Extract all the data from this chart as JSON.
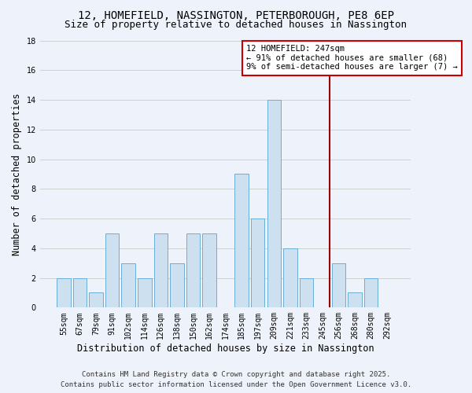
{
  "title": "12, HOMEFIELD, NASSINGTON, PETERBOROUGH, PE8 6EP",
  "subtitle": "Size of property relative to detached houses in Nassington",
  "xlabel": "Distribution of detached houses by size in Nassington",
  "ylabel": "Number of detached properties",
  "bar_labels": [
    "55sqm",
    "67sqm",
    "79sqm",
    "91sqm",
    "102sqm",
    "114sqm",
    "126sqm",
    "138sqm",
    "150sqm",
    "162sqm",
    "174sqm",
    "185sqm",
    "197sqm",
    "209sqm",
    "221sqm",
    "233sqm",
    "245sqm",
    "256sqm",
    "268sqm",
    "280sqm",
    "292sqm"
  ],
  "bar_heights": [
    2,
    2,
    1,
    5,
    3,
    2,
    5,
    3,
    5,
    5,
    0,
    9,
    6,
    14,
    4,
    2,
    0,
    3,
    1,
    2,
    0
  ],
  "bar_color": "#cce0f0",
  "bar_edge_color": "#6baed6",
  "grid_color": "#d0d0d0",
  "background_color": "#eef2fa",
  "vline_x_idx": 16.45,
  "vline_color": "#990000",
  "annotation_title": "12 HOMEFIELD: 247sqm",
  "annotation_line1": "← 91% of detached houses are smaller (68)",
  "annotation_line2": "9% of semi-detached houses are larger (7) →",
  "annotation_box_facecolor": "#ffffff",
  "annotation_box_edgecolor": "#cc0000",
  "ylim": [
    0,
    18
  ],
  "yticks": [
    0,
    2,
    4,
    6,
    8,
    10,
    12,
    14,
    16,
    18
  ],
  "footnote1": "Contains HM Land Registry data © Crown copyright and database right 2025.",
  "footnote2": "Contains public sector information licensed under the Open Government Licence v3.0.",
  "title_fontsize": 10,
  "subtitle_fontsize": 9,
  "xlabel_fontsize": 8.5,
  "ylabel_fontsize": 8.5,
  "tick_fontsize": 7,
  "annotation_fontsize": 7.5,
  "footnote_fontsize": 6.5
}
